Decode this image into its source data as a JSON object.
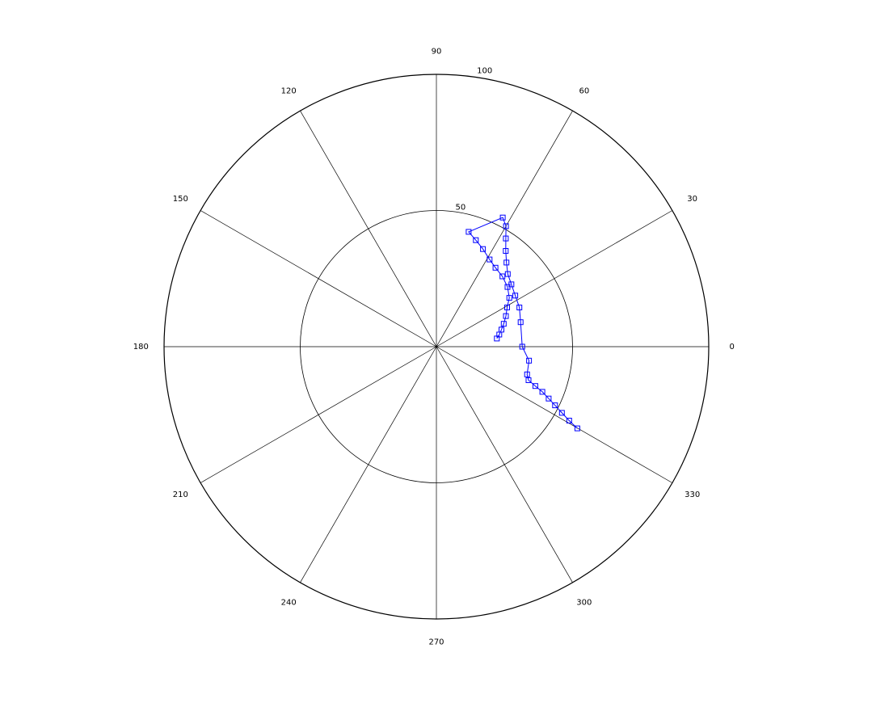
{
  "chart_data": {
    "type": "line",
    "subtype": "polar",
    "radial_range": [
      0,
      100
    ],
    "radial_ticks": [
      50,
      100
    ],
    "radial_tick_labels": [
      "50",
      "100"
    ],
    "angle_ticks": [
      0,
      30,
      60,
      90,
      120,
      150,
      180,
      210,
      240,
      270,
      300,
      330
    ],
    "angle_tick_labels": [
      "0",
      "30",
      "60",
      "90",
      "120",
      "150",
      "180",
      "210",
      "240",
      "270",
      "300",
      "330"
    ],
    "grid": true,
    "series": [
      {
        "marker": "square",
        "color": "#0000ff",
        "points": [
          {
            "theta": 329.9,
            "r": 59.8
          },
          {
            "theta": 330.9,
            "r": 55.8
          },
          {
            "theta": 332.2,
            "r": 52.1
          },
          {
            "theta": 333.7,
            "r": 48.6
          },
          {
            "theta": 335.2,
            "r": 45.4
          },
          {
            "theta": 336.9,
            "r": 42.3
          },
          {
            "theta": 338.3,
            "r": 39.1
          },
          {
            "theta": 340.0,
            "r": 36.0
          },
          {
            "theta": 343.0,
            "r": 34.8
          },
          {
            "theta": 351.4,
            "r": 34.4
          },
          {
            "theta": 0.0,
            "r": 31.5
          },
          {
            "theta": 16.2,
            "r": 32.2
          },
          {
            "theta": 25.3,
            "r": 33.7
          },
          {
            "theta": 32.9,
            "r": 34.5
          },
          {
            "theta": 39.7,
            "r": 35.8
          },
          {
            "theta": 45.5,
            "r": 37.4
          },
          {
            "theta": 50.2,
            "r": 40.2
          },
          {
            "theta": 54.1,
            "r": 43.4
          },
          {
            "theta": 57.3,
            "r": 47.2
          },
          {
            "theta": 60.0,
            "r": 51.1
          },
          {
            "theta": 62.8,
            "r": 53.3
          },
          {
            "theta": 74.3,
            "r": 43.8
          },
          {
            "theta": 69.7,
            "r": 41.7
          },
          {
            "theta": 64.5,
            "r": 39.7
          },
          {
            "theta": 58.6,
            "r": 37.5
          },
          {
            "theta": 53.2,
            "r": 36.2
          },
          {
            "theta": 46.8,
            "r": 35.4
          },
          {
            "theta": 40.0,
            "r": 34.1
          },
          {
            "theta": 33.8,
            "r": 32.2
          },
          {
            "theta": 29.0,
            "r": 29.7
          },
          {
            "theta": 23.8,
            "r": 27.9
          },
          {
            "theta": 18.8,
            "r": 26.1
          },
          {
            "theta": 14.7,
            "r": 24.7
          },
          {
            "theta": 10.9,
            "r": 23.5
          },
          {
            "theta": 7.7,
            "r": 22.4
          }
        ]
      }
    ]
  }
}
